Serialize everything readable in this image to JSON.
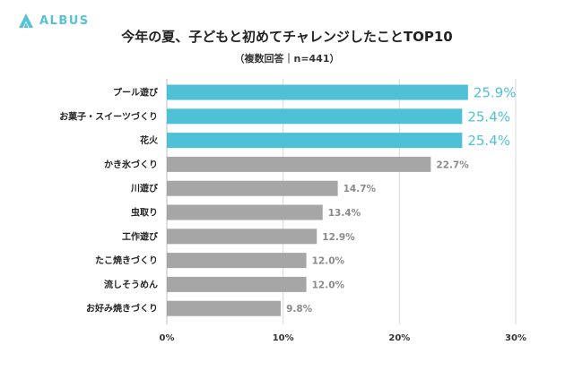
{
  "brand": {
    "name": "ALBUS",
    "color": "#56c2d6",
    "icon": "albus-logo-icon"
  },
  "chart_data": {
    "type": "bar",
    "orientation": "horizontal",
    "title": "今年の夏、子どもと初めてチャレンジしたことTOP10",
    "subtitle": "（複数回答｜n=441）",
    "categories": [
      "プール遊び",
      "お菓子・スイーツづくり",
      "花火",
      "かき氷づくり",
      "川遊び",
      "虫取り",
      "工作遊び",
      "たこ焼きづくり",
      "流しそうめん",
      "お好み焼きづくり"
    ],
    "values": [
      25.9,
      25.4,
      25.4,
      22.7,
      14.7,
      13.4,
      12.9,
      12.0,
      12.0,
      9.8
    ],
    "value_labels": [
      "25.9%",
      "25.4%",
      "25.4%",
      "22.7%",
      "14.7%",
      "13.4%",
      "12.9%",
      "12.0%",
      "12.0%",
      "9.8%"
    ],
    "highlight_count": 3,
    "xlim": [
      0,
      30
    ],
    "xticks": [
      0,
      10,
      20,
      30
    ],
    "xtick_labels": [
      "0%",
      "10%",
      "20%",
      "30%"
    ],
    "grid": true,
    "colors": {
      "highlight": "#4fc1d6",
      "normal": "#a6a6a6",
      "grid": "#d9d9d9"
    }
  }
}
